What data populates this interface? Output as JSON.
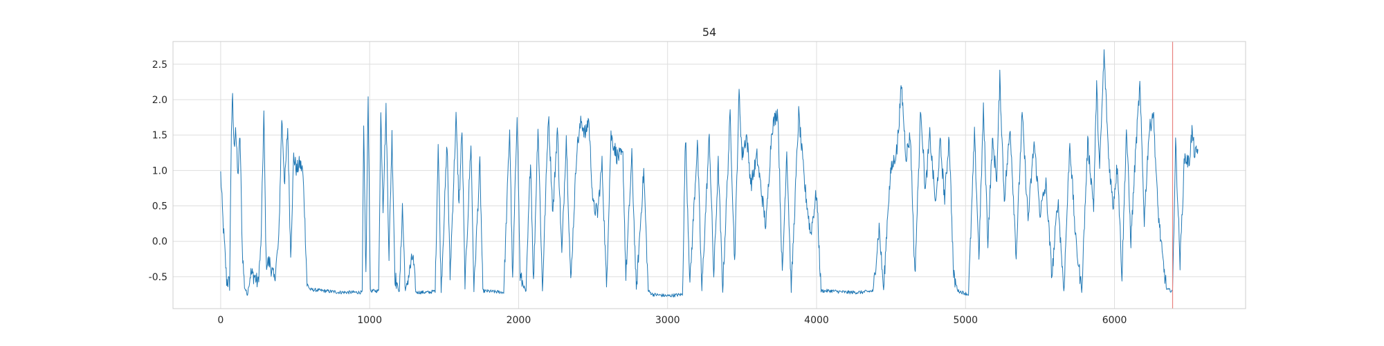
{
  "chart_data": {
    "type": "line",
    "title": "54",
    "xlabel": "",
    "ylabel": "",
    "xlim": [
      -320,
      6880
    ],
    "ylim": [
      -0.95,
      2.82
    ],
    "grid": true,
    "x_ticks": [
      0,
      1000,
      2000,
      3000,
      4000,
      5000,
      6000
    ],
    "y_ticks": [
      -0.5,
      0.0,
      0.5,
      1.0,
      1.5,
      2.0,
      2.5
    ],
    "series": [
      {
        "name": "",
        "color": "#1f77b4",
        "x_range": [
          0,
          6560
        ],
        "points": [
          [
            0,
            0.95
          ],
          [
            15,
            0.3
          ],
          [
            40,
            -0.55
          ],
          [
            60,
            -0.6
          ],
          [
            72,
            1.6
          ],
          [
            80,
            2.0
          ],
          [
            90,
            1.3
          ],
          [
            100,
            1.65
          ],
          [
            115,
            0.9
          ],
          [
            130,
            1.5
          ],
          [
            145,
            -0.1
          ],
          [
            160,
            -0.65
          ],
          [
            180,
            -0.75
          ],
          [
            200,
            -0.45
          ],
          [
            230,
            -0.5
          ],
          [
            250,
            -0.6
          ],
          [
            270,
            -0.1
          ],
          [
            290,
            1.8
          ],
          [
            305,
            -0.3
          ],
          [
            330,
            -0.3
          ],
          [
            360,
            -0.55
          ],
          [
            390,
            0.0
          ],
          [
            410,
            1.75
          ],
          [
            430,
            0.8
          ],
          [
            450,
            1.6
          ],
          [
            470,
            -0.2
          ],
          [
            490,
            1.2
          ],
          [
            510,
            1.0
          ],
          [
            530,
            1.1
          ],
          [
            550,
            1.0
          ],
          [
            560,
            0.6
          ],
          [
            580,
            -0.6
          ],
          [
            600,
            -0.68
          ],
          [
            700,
            -0.7
          ],
          [
            800,
            -0.72
          ],
          [
            900,
            -0.72
          ],
          [
            950,
            -0.72
          ],
          [
            960,
            1.55
          ],
          [
            975,
            -0.5
          ],
          [
            990,
            2.05
          ],
          [
            1005,
            -0.7
          ],
          [
            1060,
            -0.7
          ],
          [
            1075,
            1.8
          ],
          [
            1090,
            0.5
          ],
          [
            1110,
            1.85
          ],
          [
            1130,
            -0.2
          ],
          [
            1150,
            1.5
          ],
          [
            1170,
            -0.5
          ],
          [
            1200,
            -0.72
          ],
          [
            1220,
            0.5
          ],
          [
            1240,
            -0.7
          ],
          [
            1290,
            -0.2
          ],
          [
            1310,
            -0.72
          ],
          [
            1400,
            -0.72
          ],
          [
            1440,
            -0.7
          ],
          [
            1460,
            1.4
          ],
          [
            1480,
            -0.7
          ],
          [
            1520,
            1.4
          ],
          [
            1540,
            -0.5
          ],
          [
            1580,
            1.75
          ],
          [
            1600,
            0.5
          ],
          [
            1620,
            1.6
          ],
          [
            1640,
            -0.65
          ],
          [
            1680,
            1.4
          ],
          [
            1700,
            -0.7
          ],
          [
            1740,
            1.1
          ],
          [
            1760,
            -0.7
          ],
          [
            1900,
            -0.72
          ],
          [
            1940,
            1.6
          ],
          [
            1960,
            -0.6
          ],
          [
            1990,
            1.85
          ],
          [
            2010,
            -0.5
          ],
          [
            2050,
            -0.72
          ],
          [
            2080,
            1.2
          ],
          [
            2100,
            -0.6
          ],
          [
            2130,
            1.65
          ],
          [
            2160,
            -0.7
          ],
          [
            2200,
            1.8
          ],
          [
            2230,
            0.4
          ],
          [
            2260,
            1.6
          ],
          [
            2290,
            -0.2
          ],
          [
            2320,
            1.5
          ],
          [
            2350,
            -0.6
          ],
          [
            2390,
            1.3
          ],
          [
            2420,
            1.7
          ],
          [
            2450,
            1.5
          ],
          [
            2470,
            1.75
          ],
          [
            2500,
            0.5
          ],
          [
            2530,
            0.4
          ],
          [
            2560,
            1.1
          ],
          [
            2590,
            -0.65
          ],
          [
            2620,
            1.5
          ],
          [
            2660,
            1.2
          ],
          [
            2700,
            1.2
          ],
          [
            2720,
            -0.5
          ],
          [
            2760,
            1.2
          ],
          [
            2790,
            -0.7
          ],
          [
            2840,
            1.0
          ],
          [
            2870,
            -0.7
          ],
          [
            2900,
            -0.75
          ],
          [
            3000,
            -0.77
          ],
          [
            3100,
            -0.75
          ],
          [
            3120,
            1.5
          ],
          [
            3150,
            -0.6
          ],
          [
            3200,
            1.4
          ],
          [
            3230,
            -0.7
          ],
          [
            3280,
            1.5
          ],
          [
            3310,
            -0.5
          ],
          [
            3340,
            1.1
          ],
          [
            3370,
            -0.7
          ],
          [
            3420,
            1.8
          ],
          [
            3450,
            -0.3
          ],
          [
            3480,
            2.1
          ],
          [
            3500,
            1.2
          ],
          [
            3530,
            1.5
          ],
          [
            3560,
            0.8
          ],
          [
            3600,
            1.2
          ],
          [
            3630,
            0.7
          ],
          [
            3660,
            0.2
          ],
          [
            3700,
            1.6
          ],
          [
            3740,
            1.85
          ],
          [
            3770,
            -0.5
          ],
          [
            3800,
            1.3
          ],
          [
            3830,
            -0.7
          ],
          [
            3880,
            1.8
          ],
          [
            3920,
            0.8
          ],
          [
            3960,
            0.1
          ],
          [
            4000,
            0.7
          ],
          [
            4030,
            -0.7
          ],
          [
            4100,
            -0.7
          ],
          [
            4200,
            -0.72
          ],
          [
            4300,
            -0.72
          ],
          [
            4380,
            -0.7
          ],
          [
            4420,
            0.2
          ],
          [
            4450,
            -0.7
          ],
          [
            4480,
            0.5
          ],
          [
            4500,
            1.0
          ],
          [
            4540,
            1.3
          ],
          [
            4570,
            2.2
          ],
          [
            4600,
            1.2
          ],
          [
            4630,
            1.5
          ],
          [
            4660,
            -0.5
          ],
          [
            4700,
            1.9
          ],
          [
            4730,
            0.7
          ],
          [
            4760,
            1.5
          ],
          [
            4800,
            0.5
          ],
          [
            4830,
            1.4
          ],
          [
            4860,
            0.6
          ],
          [
            4890,
            1.5
          ],
          [
            4920,
            -0.5
          ],
          [
            4950,
            -0.7
          ],
          [
            5020,
            -0.75
          ],
          [
            5060,
            1.5
          ],
          [
            5090,
            -0.2
          ],
          [
            5120,
            1.85
          ],
          [
            5150,
            0.0
          ],
          [
            5180,
            1.4
          ],
          [
            5210,
            0.9
          ],
          [
            5230,
            2.3
          ],
          [
            5260,
            0.6
          ],
          [
            5300,
            1.6
          ],
          [
            5340,
            -0.2
          ],
          [
            5380,
            1.8
          ],
          [
            5420,
            0.3
          ],
          [
            5460,
            1.4
          ],
          [
            5500,
            0.4
          ],
          [
            5540,
            0.8
          ],
          [
            5580,
            -0.5
          ],
          [
            5620,
            0.6
          ],
          [
            5660,
            -0.7
          ],
          [
            5700,
            1.4
          ],
          [
            5740,
            0.0
          ],
          [
            5780,
            -0.7
          ],
          [
            5820,
            1.4
          ],
          [
            5860,
            0.5
          ],
          [
            5880,
            2.2
          ],
          [
            5900,
            1.0
          ],
          [
            5930,
            2.65
          ],
          [
            5960,
            1.2
          ],
          [
            5990,
            0.5
          ],
          [
            6020,
            1.1
          ],
          [
            6050,
            -0.5
          ],
          [
            6080,
            1.6
          ],
          [
            6110,
            0.0
          ],
          [
            6140,
            1.2
          ],
          [
            6170,
            2.2
          ],
          [
            6200,
            0.3
          ],
          [
            6230,
            1.5
          ],
          [
            6260,
            1.85
          ],
          [
            6290,
            0.5
          ],
          [
            6320,
            -0.2
          ],
          [
            6350,
            -0.68
          ],
          [
            6390,
            -0.7
          ],
          [
            6410,
            1.4
          ],
          [
            6440,
            -0.3
          ],
          [
            6470,
            1.2
          ],
          [
            6500,
            1.1
          ],
          [
            6520,
            1.55
          ],
          [
            6540,
            1.2
          ],
          [
            6560,
            1.3
          ]
        ]
      }
    ],
    "markers": [
      {
        "type": "vertical-line",
        "x": 6390,
        "color": "#e8817e"
      }
    ]
  }
}
